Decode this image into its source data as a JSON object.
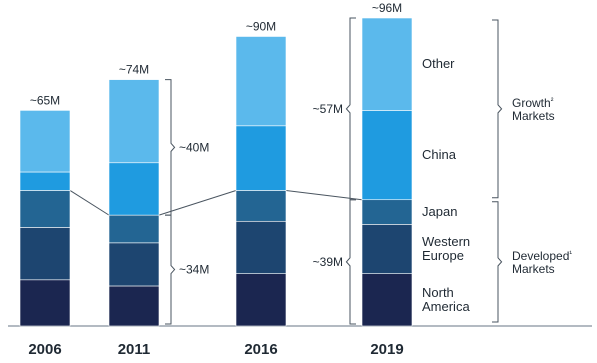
{
  "chart_data": {
    "type": "bar",
    "stacked": true,
    "title": "",
    "xlabel": "",
    "ylabel": "",
    "ylim": [
      0,
      100
    ],
    "grid": false,
    "legend": "inline-right",
    "categories": [
      "2006",
      "2011",
      "2016",
      "2019"
    ],
    "totals": [
      "~65M",
      "~74M",
      "~90M",
      "~96M"
    ],
    "series": [
      {
        "name": "North America",
        "color": "#1b2650",
        "values": [
          15,
          13,
          17,
          17
        ]
      },
      {
        "name": "Western Europe",
        "color": "#1d4570",
        "values": [
          17,
          14,
          17,
          16
        ]
      },
      {
        "name": "Japan",
        "color": "#236593",
        "values": [
          12,
          9,
          10,
          8
        ]
      },
      {
        "name": "China",
        "color": "#1f9be0",
        "values": [
          6,
          17,
          21,
          29
        ]
      },
      {
        "name": "Other",
        "color": "#5bb9ec",
        "values": [
          20,
          27,
          29,
          30
        ]
      }
    ],
    "annotations": {
      "developed_2011": "~34M",
      "growth_2011": "~40M",
      "growth_2019": "~57M",
      "developed_2019": "~39M"
    },
    "groups": [
      {
        "label": "Growth",
        "label2": "Markets",
        "mark": "²"
      },
      {
        "label": "Developed",
        "label2": "Markets",
        "mark": "¹"
      }
    ],
    "segment_labels": [
      {
        "series": "Other",
        "lines": [
          "Other"
        ]
      },
      {
        "series": "China",
        "lines": [
          "China"
        ]
      },
      {
        "series": "Japan",
        "lines": [
          "Japan"
        ]
      },
      {
        "series": "Western Europe",
        "lines": [
          "Western",
          "Europe"
        ]
      },
      {
        "series": "North America",
        "lines": [
          "North",
          "America"
        ]
      }
    ]
  }
}
